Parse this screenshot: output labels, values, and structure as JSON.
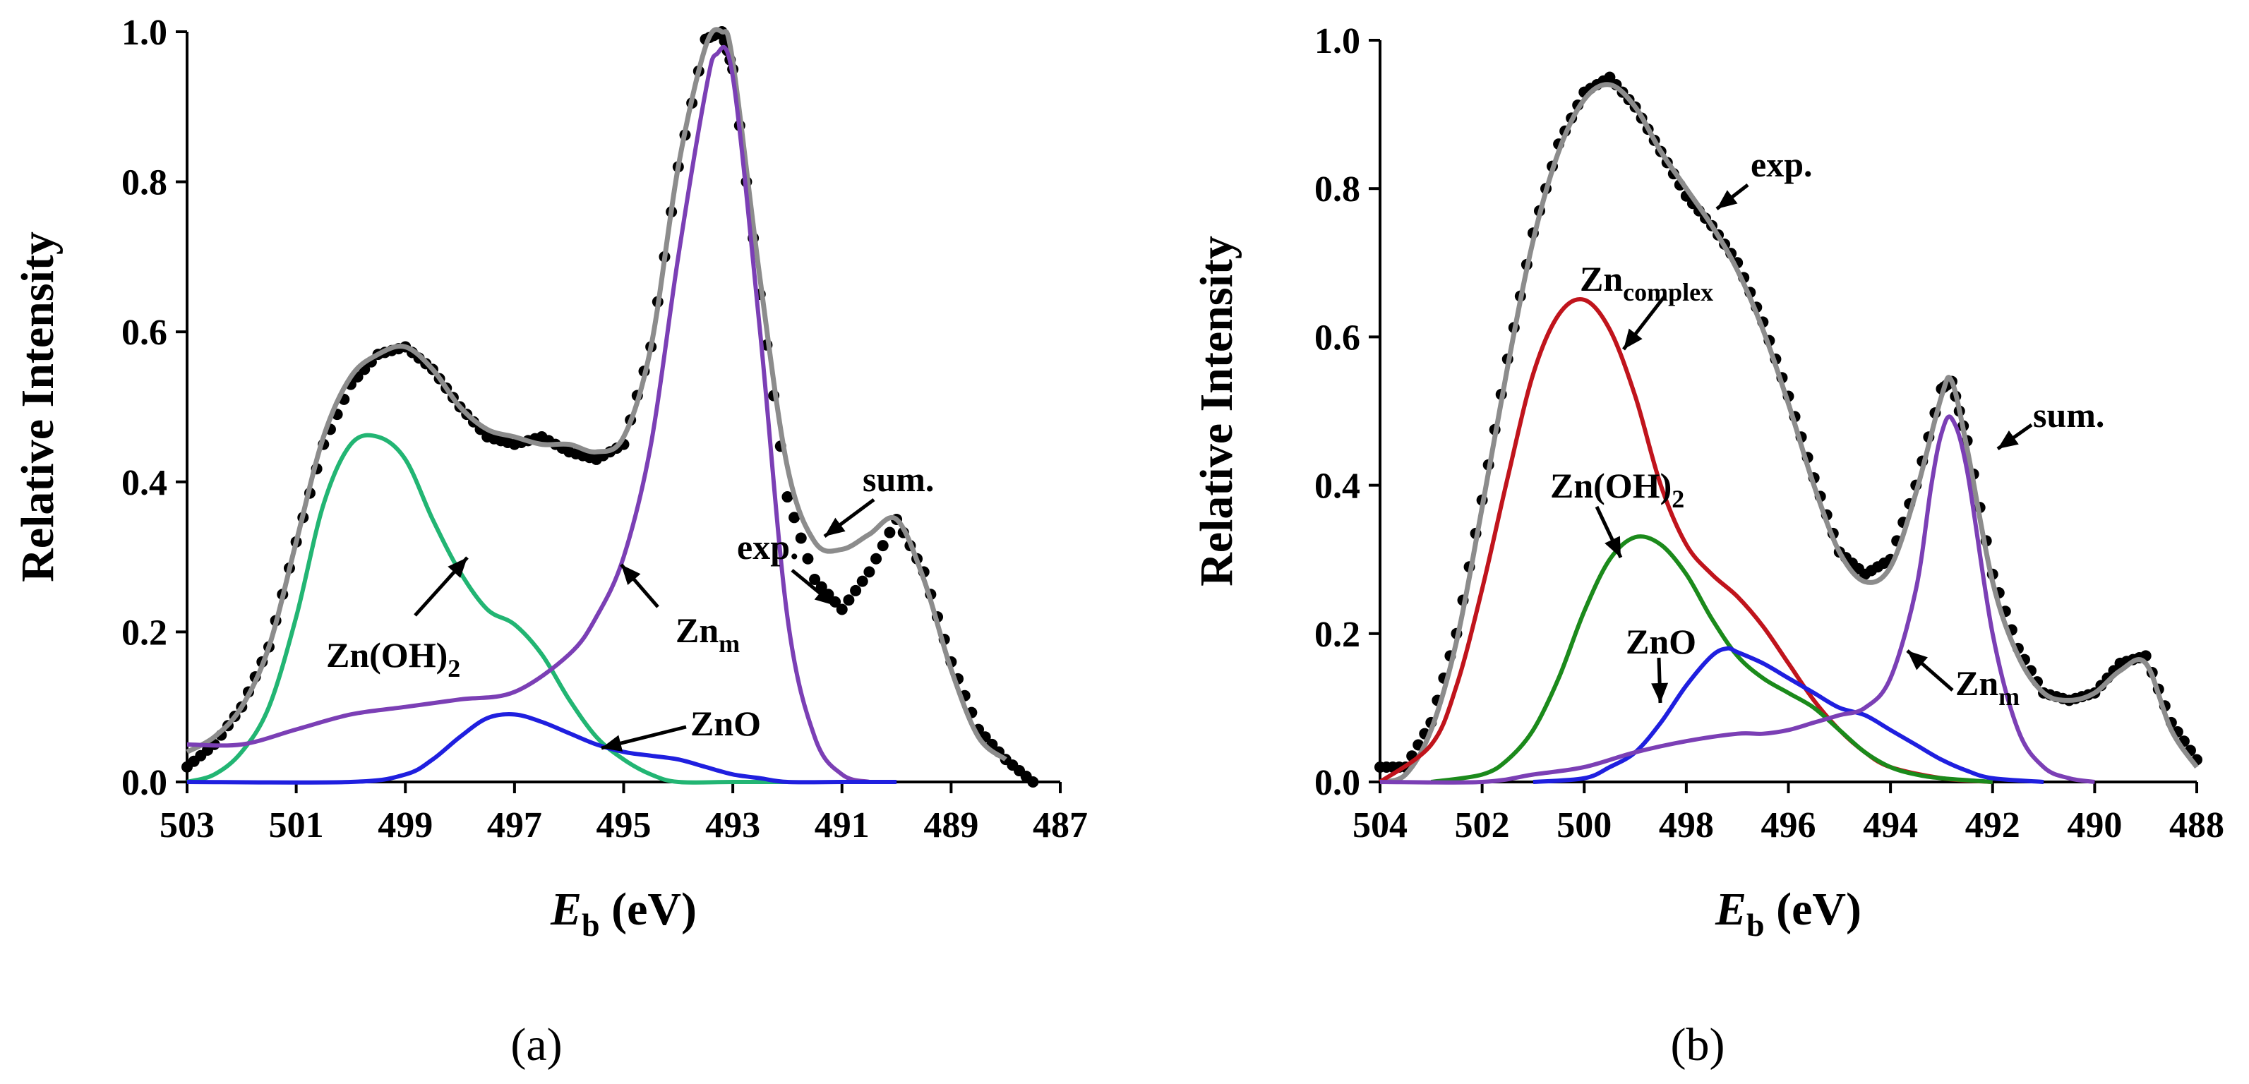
{
  "chart_data": [
    {
      "panel_label": "(a)",
      "type": "line",
      "xlabel_main": "E",
      "xlabel_sub": "b",
      "xlabel_unit": " (eV)",
      "ylabel": "Relative Intensity",
      "xlim": [
        503,
        487
      ],
      "ylim": [
        0,
        1.0
      ],
      "x_ticks": [
        "503",
        "501",
        "499",
        "497",
        "495",
        "493",
        "491",
        "489",
        "487"
      ],
      "y_ticks": [
        "0.0",
        "0.2",
        "0.4",
        "0.6",
        "0.8",
        "1.0"
      ],
      "series": [
        {
          "name": "exp.",
          "color": "#000000",
          "style": "dots",
          "x": [
            503,
            502.5,
            502,
            501.5,
            501,
            500.5,
            500,
            499.5,
            499,
            498.5,
            498,
            497.5,
            497,
            496.5,
            496,
            495.5,
            495,
            494.5,
            494,
            493.5,
            493.2,
            493,
            492.5,
            492,
            491.5,
            491,
            490.5,
            490,
            489.5,
            489,
            488.5,
            488,
            487.5
          ],
          "y": [
            0.02,
            0.05,
            0.1,
            0.18,
            0.32,
            0.45,
            0.53,
            0.57,
            0.58,
            0.55,
            0.5,
            0.46,
            0.45,
            0.46,
            0.44,
            0.43,
            0.45,
            0.58,
            0.82,
            0.99,
            1.0,
            0.95,
            0.65,
            0.38,
            0.27,
            0.23,
            0.28,
            0.35,
            0.28,
            0.16,
            0.07,
            0.03,
            0.0
          ]
        },
        {
          "name": "sum.",
          "color": "#8c8c8c",
          "style": "line",
          "x": [
            503,
            502.5,
            502,
            501.5,
            501,
            500.5,
            500,
            499.5,
            499,
            498.5,
            498,
            497.5,
            497,
            496.5,
            496,
            495.5,
            495,
            494.5,
            494,
            493.5,
            493.2,
            493,
            492.5,
            492,
            491.5,
            491,
            490.5,
            490,
            489.5,
            489,
            488.5,
            488
          ],
          "y": [
            0.04,
            0.06,
            0.1,
            0.18,
            0.32,
            0.46,
            0.54,
            0.57,
            0.58,
            0.55,
            0.5,
            0.47,
            0.46,
            0.45,
            0.45,
            0.44,
            0.46,
            0.58,
            0.82,
            0.98,
            1.0,
            0.96,
            0.67,
            0.42,
            0.32,
            0.31,
            0.33,
            0.35,
            0.27,
            0.15,
            0.06,
            0.03
          ]
        },
        {
          "name": "Zn(OH)2",
          "color": "#22b573",
          "style": "line",
          "x": [
            503,
            502.5,
            502,
            501.5,
            501,
            500.5,
            500,
            499.5,
            499,
            498.5,
            498,
            497.5,
            497,
            496.5,
            496,
            495.5,
            495,
            494.5,
            494,
            493,
            492
          ],
          "y": [
            0.0,
            0.01,
            0.04,
            0.1,
            0.22,
            0.37,
            0.45,
            0.46,
            0.43,
            0.35,
            0.28,
            0.23,
            0.21,
            0.17,
            0.11,
            0.06,
            0.03,
            0.01,
            0.0,
            0.0,
            0.0
          ]
        },
        {
          "name": "Zn_m",
          "color": "#7b3fb5",
          "style": "line",
          "x": [
            503,
            502,
            501,
            500,
            499,
            498,
            497,
            496,
            495.5,
            495,
            494.5,
            494,
            493.5,
            493.3,
            493,
            492.5,
            492,
            491.5,
            491,
            490.5
          ],
          "y": [
            0.05,
            0.05,
            0.07,
            0.09,
            0.1,
            0.11,
            0.12,
            0.17,
            0.22,
            0.3,
            0.45,
            0.7,
            0.92,
            0.97,
            0.94,
            0.6,
            0.22,
            0.06,
            0.01,
            0.0
          ]
        },
        {
          "name": "ZnO",
          "color": "#1f1fdf",
          "style": "line",
          "x": [
            503,
            500,
            499,
            498.5,
            498,
            497.5,
            497,
            496.5,
            496,
            495.5,
            495,
            494.5,
            494,
            493.5,
            493,
            492.5,
            492,
            491,
            490
          ],
          "y": [
            0.0,
            0.0,
            0.01,
            0.03,
            0.06,
            0.085,
            0.09,
            0.08,
            0.065,
            0.05,
            0.04,
            0.035,
            0.03,
            0.02,
            0.01,
            0.005,
            0.0,
            0.0,
            0.0
          ]
        }
      ],
      "annotations": [
        {
          "text": "sum.",
          "x": 490.8,
          "y": 0.39
        },
        {
          "text": "exp.",
          "x": 491.9,
          "y": 0.31
        },
        {
          "text": "Zn(OH)",
          "sub": "2",
          "x": 499.0,
          "y": 0.195
        },
        {
          "text": "Zn",
          "sub": "m",
          "x": 493.5,
          "y": 0.22
        },
        {
          "text": "ZnO",
          "x": 493.3,
          "y": 0.07
        }
      ]
    },
    {
      "panel_label": "(b)",
      "type": "line",
      "xlabel_main": "E",
      "xlabel_sub": "b",
      "xlabel_unit": " (eV)",
      "ylabel": "Relative Intensity",
      "xlim": [
        504,
        488
      ],
      "ylim": [
        0,
        1.0
      ],
      "x_ticks": [
        "504",
        "502",
        "500",
        "498",
        "496",
        "494",
        "492",
        "490",
        "488"
      ],
      "y_ticks": [
        "0.0",
        "0.2",
        "0.4",
        "0.6",
        "0.8",
        "1.0"
      ],
      "series": [
        {
          "name": "exp.",
          "color": "#000000",
          "style": "dots",
          "x": [
            504,
            503.5,
            503,
            502.5,
            502,
            501.5,
            501,
            500.5,
            500,
            499.5,
            499,
            498.5,
            498,
            497.5,
            497,
            496.5,
            496,
            495.5,
            495,
            494.5,
            494,
            493.5,
            493,
            492.8,
            492.5,
            492,
            491.5,
            491,
            490.5,
            490,
            489.5,
            489,
            488.5,
            488
          ],
          "y": [
            0.02,
            0.02,
            0.08,
            0.2,
            0.38,
            0.57,
            0.74,
            0.86,
            0.93,
            0.95,
            0.91,
            0.85,
            0.79,
            0.75,
            0.7,
            0.62,
            0.52,
            0.41,
            0.31,
            0.28,
            0.3,
            0.4,
            0.53,
            0.54,
            0.46,
            0.28,
            0.18,
            0.12,
            0.11,
            0.12,
            0.16,
            0.17,
            0.08,
            0.03
          ]
        },
        {
          "name": "sum.",
          "color": "#8c8c8c",
          "style": "line",
          "x": [
            504,
            503.5,
            503,
            502.5,
            502,
            501.5,
            501,
            500.5,
            500,
            499.5,
            499,
            498.5,
            498,
            497.5,
            497,
            496.5,
            496,
            495.5,
            495,
            494.5,
            494,
            493.5,
            493,
            492.8,
            492.5,
            492,
            491.5,
            491,
            490.5,
            490,
            489.5,
            489,
            488.5,
            488
          ],
          "y": [
            0.0,
            0.01,
            0.07,
            0.19,
            0.37,
            0.56,
            0.73,
            0.85,
            0.92,
            0.94,
            0.91,
            0.85,
            0.8,
            0.75,
            0.69,
            0.61,
            0.51,
            0.4,
            0.31,
            0.27,
            0.29,
            0.39,
            0.52,
            0.54,
            0.45,
            0.27,
            0.17,
            0.12,
            0.11,
            0.12,
            0.15,
            0.16,
            0.07,
            0.02
          ]
        },
        {
          "name": "Zn_complex",
          "color": "#c0141c",
          "style": "line",
          "x": [
            504,
            503,
            502.5,
            502,
            501.5,
            501,
            500.5,
            500,
            499.5,
            499,
            498.5,
            498,
            497.5,
            497,
            496.5,
            496,
            495.5,
            495,
            494.5,
            494,
            493,
            492
          ],
          "y": [
            0.0,
            0.05,
            0.13,
            0.26,
            0.41,
            0.55,
            0.63,
            0.65,
            0.61,
            0.52,
            0.4,
            0.32,
            0.28,
            0.25,
            0.21,
            0.16,
            0.11,
            0.07,
            0.04,
            0.02,
            0.005,
            0.0
          ]
        },
        {
          "name": "Zn(OH)2",
          "color": "#1b8a1b",
          "style": "line",
          "x": [
            503,
            502,
            501.5,
            501,
            500.5,
            500,
            499.5,
            499,
            498.5,
            498,
            497.5,
            497,
            496.5,
            496,
            495.5,
            495,
            494.5,
            494,
            493.5,
            493,
            492
          ],
          "y": [
            0.0,
            0.01,
            0.03,
            0.07,
            0.14,
            0.23,
            0.3,
            0.33,
            0.32,
            0.28,
            0.22,
            0.17,
            0.14,
            0.12,
            0.1,
            0.07,
            0.04,
            0.02,
            0.01,
            0.005,
            0.0
          ]
        },
        {
          "name": "ZnO",
          "color": "#1f1fdf",
          "style": "line",
          "x": [
            501,
            500,
            499.5,
            499,
            498.5,
            498,
            497.5,
            497.2,
            497,
            496.5,
            496,
            495.5,
            495,
            494.5,
            494,
            493.5,
            493,
            492.5,
            492,
            491
          ],
          "y": [
            0.0,
            0.005,
            0.02,
            0.04,
            0.08,
            0.13,
            0.17,
            0.18,
            0.175,
            0.16,
            0.14,
            0.12,
            0.1,
            0.09,
            0.07,
            0.05,
            0.03,
            0.015,
            0.005,
            0.0
          ]
        },
        {
          "name": "Zn_m",
          "color": "#7b3fb5",
          "style": "line",
          "x": [
            504,
            502,
            501,
            500,
            499,
            498,
            497,
            496.5,
            496,
            495.5,
            495,
            494.5,
            494,
            493.5,
            493.2,
            493,
            492.8,
            492.5,
            492,
            491.5,
            491,
            490.5,
            490
          ],
          "y": [
            0.0,
            0.0,
            0.01,
            0.02,
            0.04,
            0.055,
            0.065,
            0.065,
            0.07,
            0.08,
            0.09,
            0.1,
            0.14,
            0.26,
            0.4,
            0.47,
            0.49,
            0.42,
            0.2,
            0.07,
            0.02,
            0.005,
            0.0
          ]
        }
      ],
      "annotations": [
        {
          "text": "exp.",
          "x": 495.3,
          "y": 0.8
        },
        {
          "text": "Zn",
          "sub": "complex",
          "x": 499.2,
          "y": 0.63
        },
        {
          "text": "sum.",
          "x": 491.0,
          "y": 0.43
        },
        {
          "text": "Zn(OH)",
          "sub": "2",
          "x": 499.6,
          "y": 0.37
        },
        {
          "text": "ZnO",
          "x": 499.2,
          "y": 0.17
        },
        {
          "text": "Zn",
          "sub": "m",
          "x": 491.5,
          "y": 0.12
        }
      ]
    }
  ]
}
